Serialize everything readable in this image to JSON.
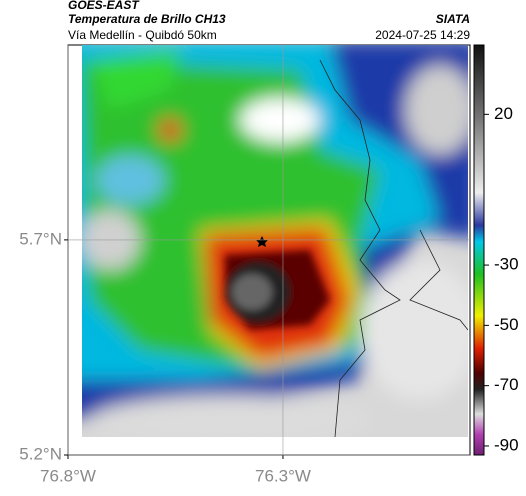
{
  "header": {
    "source": "GOES-EAST",
    "title": "Temperatura de Brillo CH13",
    "subtitle": "Vía Medellín - Quibdó 50km",
    "brand": "SIATA",
    "datetime": "2024-07-25 14:29"
  },
  "map": {
    "xlim": [
      -76.8,
      -75.865
    ],
    "ylim": [
      5.2,
      6.153
    ],
    "xticks": [
      {
        "value": -76.8,
        "label": "76.8°W"
      },
      {
        "value": -76.3,
        "label": "76.3°W"
      }
    ],
    "yticks": [
      {
        "value": 5.2,
        "label": "5.2°N"
      },
      {
        "value": 5.7,
        "label": "5.7°N"
      }
    ]
  },
  "colorbar": {
    "clim": [
      -93,
      43
    ],
    "ticks": [
      20,
      -30,
      -50,
      -70,
      -90
    ]
  }
}
